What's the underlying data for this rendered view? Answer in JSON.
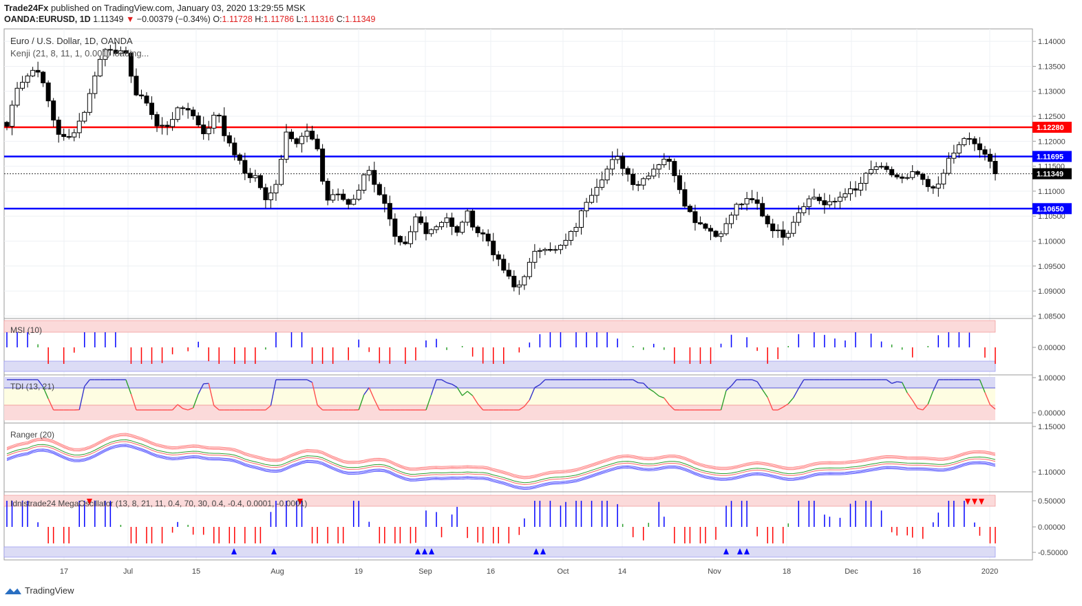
{
  "header": {
    "publisher": "Trade24Fx",
    "published_text": "published on TradingView.com, January 03, 2020 13:29:55 MSK",
    "symbol_line": "OANDA:EURUSD, 1D",
    "last": "1.11349",
    "change": "−0.00379 (−0.34%)",
    "o_label": "O:",
    "o": "1.11728",
    "h_label": "H:",
    "h": "1.11786",
    "l_label": "L:",
    "l": "1.11316",
    "c_label": "C:",
    "c": "1.11349"
  },
  "legend": {
    "title": "Euro / U.S. Dollar, 1D, OANDA",
    "kenji": "Kenji (21, 8, 11, 1, 0.001) loading..."
  },
  "indicators": {
    "msi": "MSI (10)",
    "tdi": "TDI (13, 21)",
    "ranger": "Ranger (20)",
    "mega": "Idnistrade24 MegaOscillator (13, 8, 21, 11, 0.4, 70, 30, 0.4, -0.4, 0.0001, -0.0001)"
  },
  "footer": {
    "brand": "TradingView"
  },
  "colors": {
    "up": "#ffffff",
    "down": "#000000",
    "red_line": "#ff0000",
    "blue_line": "#0000ff",
    "badge_red": "#ff0000",
    "badge_blue": "#0000ff"
  },
  "chart_data": {
    "type": "candlestick",
    "title": "Euro / U.S. Dollar, 1D, OANDA",
    "x_tick_labels": [
      "17",
      "Jul",
      "15",
      "Aug",
      "19",
      "Sep",
      "16",
      "Oct",
      "14",
      "Nov",
      "18",
      "Dec",
      "16",
      "2020"
    ],
    "y_tick_labels": [
      "1.14000",
      "1.13500",
      "1.13000",
      "1.12500",
      "1.12000",
      "1.11500",
      "1.11000",
      "1.10500",
      "1.10000",
      "1.09500",
      "1.09000",
      "1.08500"
    ],
    "ylim": [
      1.0845,
      1.1425
    ],
    "horizontal_levels": [
      {
        "value": 1.1228,
        "label": "1.12280",
        "color": "#ff0000"
      },
      {
        "value": 1.11695,
        "label": "1.11695",
        "color": "#0000ff"
      },
      {
        "value": 1.1065,
        "label": "1.10650",
        "color": "#0000ff"
      }
    ],
    "last_price": {
      "value": 1.11349,
      "label": "1.11349"
    },
    "close_path": [
      1.123,
      1.131,
      1.133,
      1.135,
      1.129,
      1.122,
      1.12,
      1.123,
      1.127,
      1.135,
      1.139,
      1.138,
      1.137,
      1.129,
      1.128,
      1.123,
      1.123,
      1.126,
      1.127,
      1.124,
      1.121,
      1.127,
      1.12,
      1.117,
      1.113,
      1.113,
      1.1075,
      1.112,
      1.122,
      1.12,
      1.122,
      1.119,
      1.108,
      1.11,
      1.107,
      1.109,
      1.115,
      1.111,
      1.1065,
      1.0995,
      1.099,
      1.105,
      1.102,
      1.103,
      1.105,
      1.101,
      1.106,
      1.102,
      1.101,
      1.0965,
      1.0935,
      1.09,
      1.094,
      1.098,
      1.099,
      1.098,
      1.1,
      1.103,
      1.108,
      1.111,
      1.114,
      1.117,
      1.114,
      1.111,
      1.113,
      1.115,
      1.117,
      1.113,
      1.107,
      1.104,
      1.103,
      1.101,
      1.103,
      1.107,
      1.108,
      1.108,
      1.104,
      1.102,
      1.101,
      1.105,
      1.108,
      1.109,
      1.107,
      1.108,
      1.11,
      1.11,
      1.113,
      1.115,
      1.114,
      1.113,
      1.112,
      1.114,
      1.111,
      1.11,
      1.115,
      1.118,
      1.121,
      1.119,
      1.1174,
      1.1135
    ],
    "indicator_panes": [
      {
        "name": "MSI (10)",
        "y_tick_labels": [
          "0.00000"
        ]
      },
      {
        "name": "TDI (13, 21)",
        "y_tick_labels": [
          "1.00000",
          "0.00000"
        ]
      },
      {
        "name": "Ranger (20)",
        "y_tick_labels": [
          "1.15000",
          "1.10000"
        ]
      },
      {
        "name": "Idnistrade24 MegaOscillator (13, 8, 21, 11, 0.4, 70, 30, 0.4, -0.4, 0.0001, -0.0001)",
        "y_tick_labels": [
          "0.50000",
          "0.00000",
          "-0.50000"
        ]
      }
    ]
  }
}
